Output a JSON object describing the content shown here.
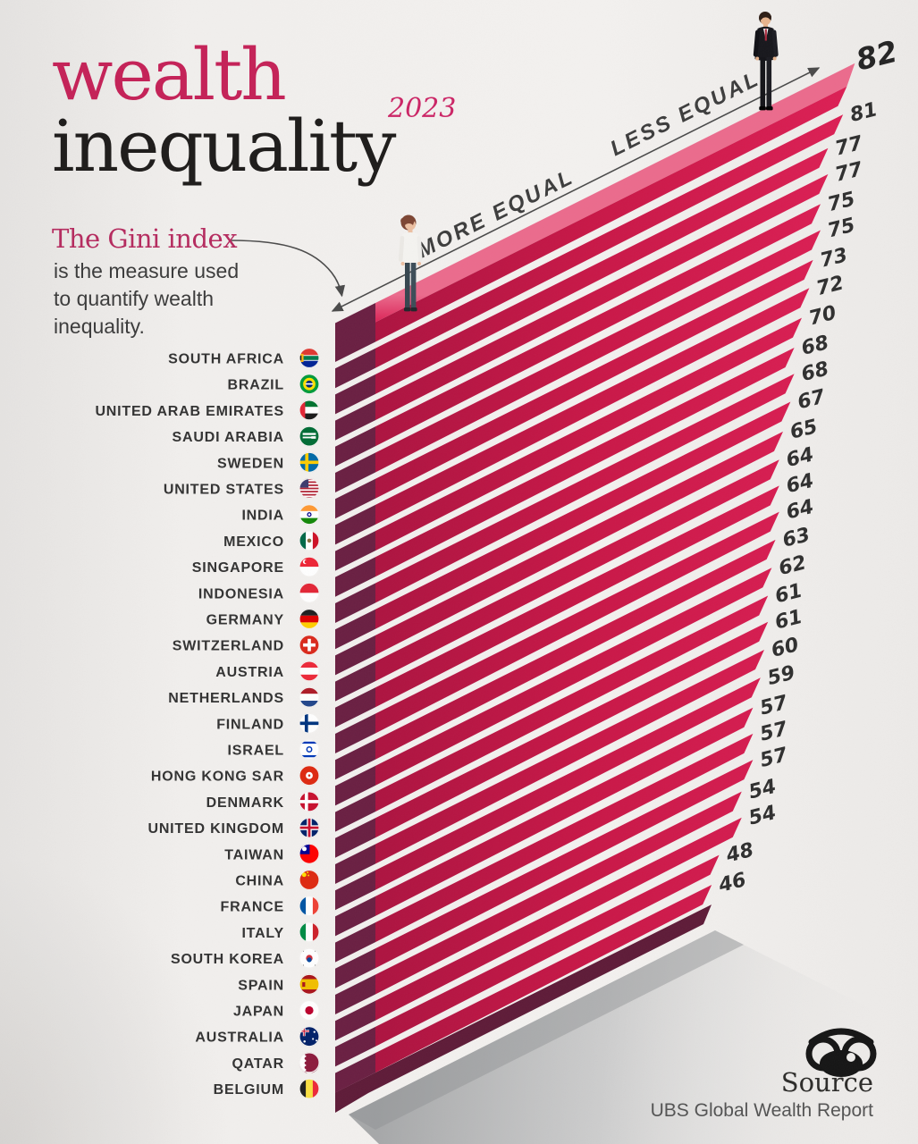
{
  "title": {
    "word1": "wealth",
    "word2": "inequality",
    "year": "2023"
  },
  "intro": {
    "heading": "The Gini index",
    "body_lines": [
      "is the measure used",
      "to quantify wealth",
      "inequality."
    ]
  },
  "axis": {
    "more_label": "MORE EQUAL",
    "less_label": "LESS EQUAL"
  },
  "source": {
    "label": "Source",
    "text": "UBS Global Wealth Report"
  },
  "colors": {
    "accent_pink": "#c42459",
    "bar_bright": "#d91a4f",
    "bar_dark_left": "#ad1340",
    "bar_cap": "#6a1f42",
    "bar_top_face": "#e9557b",
    "background": "#f0eeec",
    "shadow": "#9fa1a3",
    "text_dark": "#323232"
  },
  "chart_data": {
    "type": "bar",
    "title": "wealth inequality 2023",
    "subtitle": "The Gini index is the measure used to quantify wealth inequality.",
    "orientation": "isometric-horizontal",
    "value_range_labels": {
      "low_end": "MORE EQUAL",
      "high_end": "LESS EQUAL"
    },
    "categories": [
      "SOUTH AFRICA",
      "BRAZIL",
      "UNITED ARAB EMIRATES",
      "SAUDI ARABIA",
      "SWEDEN",
      "UNITED STATES",
      "INDIA",
      "MEXICO",
      "SINGAPORE",
      "INDONESIA",
      "GERMANY",
      "SWITZERLAND",
      "AUSTRIA",
      "NETHERLANDS",
      "FINLAND",
      "ISRAEL",
      "HONG KONG SAR",
      "DENMARK",
      "UNITED KINGDOM",
      "TAIWAN",
      "CHINA",
      "FRANCE",
      "ITALY",
      "SOUTH KOREA",
      "SPAIN",
      "JAPAN",
      "AUSTRALIA",
      "QATAR",
      "BELGIUM"
    ],
    "values": [
      82,
      81,
      77,
      77,
      75,
      75,
      73,
      72,
      70,
      68,
      68,
      67,
      65,
      64,
      64,
      64,
      63,
      62,
      61,
      61,
      60,
      59,
      57,
      57,
      57,
      54,
      54,
      48,
      46
    ],
    "ylabel": "Gini index",
    "legend": "none",
    "source": "UBS Global Wealth Report"
  },
  "flags": [
    [
      [
        "r",
        0,
        0,
        1,
        1,
        "#ffffff"
      ],
      [
        "r",
        0,
        0,
        1,
        0.36,
        "#de3831"
      ],
      [
        "r",
        0,
        0.64,
        1,
        0.36,
        "#002395"
      ],
      [
        "r",
        0,
        0.4,
        1,
        0.2,
        "#007a4d"
      ],
      [
        "r",
        0,
        0.3,
        0.22,
        0.4,
        "#ffb612"
      ],
      [
        "r",
        0,
        0.38,
        0.12,
        0.24,
        "#1a1a1a"
      ]
    ],
    [
      [
        "r",
        0,
        0,
        1,
        1,
        "#009b3a"
      ],
      [
        "c",
        0.5,
        0.5,
        0.3,
        "#fedf00"
      ],
      [
        "c",
        0.5,
        0.5,
        0.17,
        "#002776"
      ],
      [
        "r",
        0.32,
        0.46,
        0.36,
        0.07,
        "#ffffff"
      ]
    ],
    [
      [
        "r",
        0,
        0,
        1,
        1,
        "#ffffff"
      ],
      [
        "r",
        0,
        0,
        1,
        0.34,
        "#00732f"
      ],
      [
        "r",
        0,
        0.66,
        1,
        0.34,
        "#1a1a1a"
      ],
      [
        "r",
        0,
        0,
        0.3,
        1,
        "#e32636"
      ]
    ],
    [
      [
        "r",
        0,
        0,
        1,
        1,
        "#006c35"
      ],
      [
        "r",
        0.18,
        0.34,
        0.64,
        0.1,
        "#ffffff"
      ],
      [
        "r",
        0.18,
        0.52,
        0.48,
        0.08,
        "#ffffff"
      ],
      [
        "r",
        0.6,
        0.5,
        0.22,
        0.12,
        "#ffffff"
      ]
    ],
    [
      [
        "r",
        0,
        0,
        1,
        1,
        "#006aa7"
      ],
      [
        "r",
        0,
        0.42,
        1,
        0.16,
        "#fecc00"
      ],
      [
        "r",
        0.3,
        0,
        0.16,
        1,
        "#fecc00"
      ]
    ],
    [
      [
        "r",
        0,
        0,
        1,
        1,
        "#ffffff"
      ],
      [
        "r",
        0,
        0,
        1,
        0.077,
        "#b22234"
      ],
      [
        "r",
        0,
        0.154,
        1,
        0.077,
        "#b22234"
      ],
      [
        "r",
        0,
        0.308,
        1,
        0.077,
        "#b22234"
      ],
      [
        "r",
        0,
        0.462,
        1,
        0.077,
        "#b22234"
      ],
      [
        "r",
        0,
        0.616,
        1,
        0.077,
        "#b22234"
      ],
      [
        "r",
        0,
        0.77,
        1,
        0.077,
        "#b22234"
      ],
      [
        "r",
        0,
        0.924,
        1,
        0.076,
        "#b22234"
      ],
      [
        "r",
        0,
        0,
        0.46,
        0.46,
        "#3c3b6e"
      ]
    ],
    [
      [
        "r",
        0,
        0,
        1,
        1,
        "#ffffff"
      ],
      [
        "r",
        0,
        0,
        1,
        0.33,
        "#ff9933"
      ],
      [
        "r",
        0,
        0.67,
        1,
        0.33,
        "#138808"
      ],
      [
        "c",
        0.5,
        0.5,
        0.11,
        "#000088"
      ],
      [
        "c",
        0.5,
        0.5,
        0.055,
        "#ffffff"
      ]
    ],
    [
      [
        "r",
        0,
        0,
        1,
        1,
        "#ffffff"
      ],
      [
        "r",
        0,
        0,
        0.33,
        1,
        "#006847"
      ],
      [
        "r",
        0.67,
        0,
        0.33,
        1,
        "#ce1126"
      ],
      [
        "c",
        0.5,
        0.5,
        0.1,
        "#8a6d3b"
      ]
    ],
    [
      [
        "r",
        0,
        0,
        1,
        1,
        "#ffffff"
      ],
      [
        "r",
        0,
        0,
        1,
        0.5,
        "#ee2536"
      ],
      [
        "c",
        0.3,
        0.26,
        0.11,
        "#ffffff"
      ],
      [
        "c",
        0.36,
        0.26,
        0.09,
        "#ee2536"
      ]
    ],
    [
      [
        "r",
        0,
        0,
        1,
        1,
        "#ffffff"
      ],
      [
        "r",
        0,
        0,
        1,
        0.5,
        "#e32636"
      ]
    ],
    [
      [
        "r",
        0,
        0,
        1,
        0.34,
        "#1f1f1f"
      ],
      [
        "r",
        0,
        0.34,
        1,
        0.33,
        "#dd0000"
      ],
      [
        "r",
        0,
        0.67,
        1,
        0.33,
        "#ffce00"
      ]
    ],
    [
      [
        "r",
        0,
        0,
        1,
        1,
        "#da291c"
      ],
      [
        "r",
        0.42,
        0.2,
        0.16,
        0.6,
        "#ffffff"
      ],
      [
        "r",
        0.2,
        0.42,
        0.6,
        0.16,
        "#ffffff"
      ]
    ],
    [
      [
        "r",
        0,
        0,
        1,
        1,
        "#ffffff"
      ],
      [
        "r",
        0,
        0,
        1,
        0.33,
        "#ed2939"
      ],
      [
        "r",
        0,
        0.67,
        1,
        0.33,
        "#ed2939"
      ]
    ],
    [
      [
        "r",
        0,
        0,
        1,
        1,
        "#ffffff"
      ],
      [
        "r",
        0,
        0,
        1,
        0.33,
        "#ae1c28"
      ],
      [
        "r",
        0,
        0.67,
        1,
        0.33,
        "#21468b"
      ]
    ],
    [
      [
        "r",
        0,
        0,
        1,
        1,
        "#ffffff"
      ],
      [
        "r",
        0,
        0.42,
        1,
        0.16,
        "#003580"
      ],
      [
        "r",
        0.28,
        0,
        0.16,
        1,
        "#003580"
      ]
    ],
    [
      [
        "r",
        0,
        0,
        1,
        1,
        "#ffffff"
      ],
      [
        "r",
        0,
        0.12,
        1,
        0.1,
        "#0038b8"
      ],
      [
        "r",
        0,
        0.78,
        1,
        0.1,
        "#0038b8"
      ],
      [
        "c",
        0.5,
        0.5,
        0.15,
        "#0038b8"
      ],
      [
        "c",
        0.5,
        0.5,
        0.085,
        "#ffffff"
      ]
    ],
    [
      [
        "r",
        0,
        0,
        1,
        1,
        "#de2910"
      ],
      [
        "c",
        0.5,
        0.5,
        0.17,
        "#ffffff"
      ],
      [
        "c",
        0.5,
        0.5,
        0.055,
        "#de2910"
      ]
    ],
    [
      [
        "r",
        0,
        0,
        1,
        1,
        "#c8102e"
      ],
      [
        "r",
        0,
        0.42,
        1,
        0.16,
        "#ffffff"
      ],
      [
        "r",
        0.28,
        0,
        0.16,
        1,
        "#ffffff"
      ]
    ],
    [
      [
        "r",
        0,
        0,
        1,
        1,
        "#012169"
      ],
      [
        "r",
        0,
        0.38,
        1,
        0.24,
        "#ffffff"
      ],
      [
        "r",
        0.38,
        0,
        0.24,
        1,
        "#ffffff"
      ],
      [
        "r",
        0,
        0.44,
        1,
        0.12,
        "#c8102e"
      ],
      [
        "r",
        0.44,
        0,
        0.12,
        1,
        "#c8102e"
      ]
    ],
    [
      [
        "r",
        0,
        0,
        1,
        1,
        "#fe0000"
      ],
      [
        "r",
        0,
        0,
        0.52,
        0.52,
        "#000095"
      ],
      [
        "c",
        0.26,
        0.26,
        0.11,
        "#ffffff"
      ]
    ],
    [
      [
        "r",
        0,
        0,
        1,
        1,
        "#de2910"
      ],
      [
        "c",
        0.25,
        0.25,
        0.11,
        "#ffde00"
      ],
      [
        "c",
        0.42,
        0.14,
        0.04,
        "#ffde00"
      ],
      [
        "c",
        0.46,
        0.28,
        0.04,
        "#ffde00"
      ]
    ],
    [
      [
        "r",
        0,
        0,
        1,
        1,
        "#ffffff"
      ],
      [
        "r",
        0,
        0,
        0.33,
        1,
        "#0055a4"
      ],
      [
        "r",
        0.67,
        0,
        0.33,
        1,
        "#ef4135"
      ]
    ],
    [
      [
        "r",
        0,
        0,
        1,
        1,
        "#ffffff"
      ],
      [
        "r",
        0,
        0,
        0.33,
        1,
        "#008c45"
      ],
      [
        "r",
        0.67,
        0,
        0.33,
        1,
        "#cd212a"
      ]
    ],
    [
      [
        "r",
        0,
        0,
        1,
        1,
        "#ffffff"
      ],
      [
        "c",
        0.5,
        0.5,
        0.16,
        "#cd2e3a"
      ],
      [
        "c",
        0.5,
        0.58,
        0.115,
        "#0047a0"
      ],
      [
        "r",
        0.1,
        0.12,
        0.14,
        0.05,
        "#1a1a1a"
      ],
      [
        "r",
        0.76,
        0.12,
        0.14,
        0.05,
        "#1a1a1a"
      ],
      [
        "r",
        0.1,
        0.83,
        0.14,
        0.05,
        "#1a1a1a"
      ],
      [
        "r",
        0.76,
        0.83,
        0.14,
        0.05,
        "#1a1a1a"
      ]
    ],
    [
      [
        "r",
        0,
        0,
        1,
        1,
        "#f1bf00"
      ],
      [
        "r",
        0,
        0,
        1,
        0.25,
        "#aa151b"
      ],
      [
        "r",
        0,
        0.75,
        1,
        0.25,
        "#aa151b"
      ],
      [
        "r",
        0.16,
        0.4,
        0.14,
        0.22,
        "#aa151b"
      ]
    ],
    [
      [
        "r",
        0,
        0,
        1,
        1,
        "#ffffff"
      ],
      [
        "c",
        0.5,
        0.5,
        0.2,
        "#bc002d"
      ]
    ],
    [
      [
        "r",
        0,
        0,
        1,
        1,
        "#012169"
      ],
      [
        "r",
        0,
        0.18,
        0.5,
        0.12,
        "#ffffff"
      ],
      [
        "r",
        0.19,
        0,
        0.12,
        0.48,
        "#ffffff"
      ],
      [
        "r",
        0,
        0.22,
        0.5,
        0.05,
        "#c8102e"
      ],
      [
        "r",
        0.225,
        0,
        0.05,
        0.48,
        "#c8102e"
      ],
      [
        "c",
        0.75,
        0.28,
        0.05,
        "#ffffff"
      ],
      [
        "c",
        0.68,
        0.62,
        0.045,
        "#ffffff"
      ],
      [
        "c",
        0.85,
        0.7,
        0.045,
        "#ffffff"
      ],
      [
        "c",
        0.27,
        0.74,
        0.055,
        "#ffffff"
      ]
    ],
    [
      [
        "r",
        0,
        0,
        1,
        1,
        "#8d1b3d"
      ],
      [
        "r",
        0,
        0,
        0.34,
        1,
        "#ffffff"
      ],
      [
        "c",
        0.34,
        0.08,
        0.07,
        "#8d1b3d"
      ],
      [
        "c",
        0.34,
        0.3,
        0.07,
        "#8d1b3d"
      ],
      [
        "c",
        0.34,
        0.52,
        0.07,
        "#8d1b3d"
      ],
      [
        "c",
        0.34,
        0.74,
        0.07,
        "#8d1b3d"
      ],
      [
        "c",
        0.34,
        0.96,
        0.07,
        "#8d1b3d"
      ]
    ],
    [
      [
        "r",
        0,
        0,
        1,
        1,
        "#fae042"
      ],
      [
        "r",
        0,
        0,
        0.33,
        1,
        "#1f1f1f"
      ],
      [
        "r",
        0.67,
        0,
        0.33,
        1,
        "#ed2939"
      ]
    ]
  ]
}
